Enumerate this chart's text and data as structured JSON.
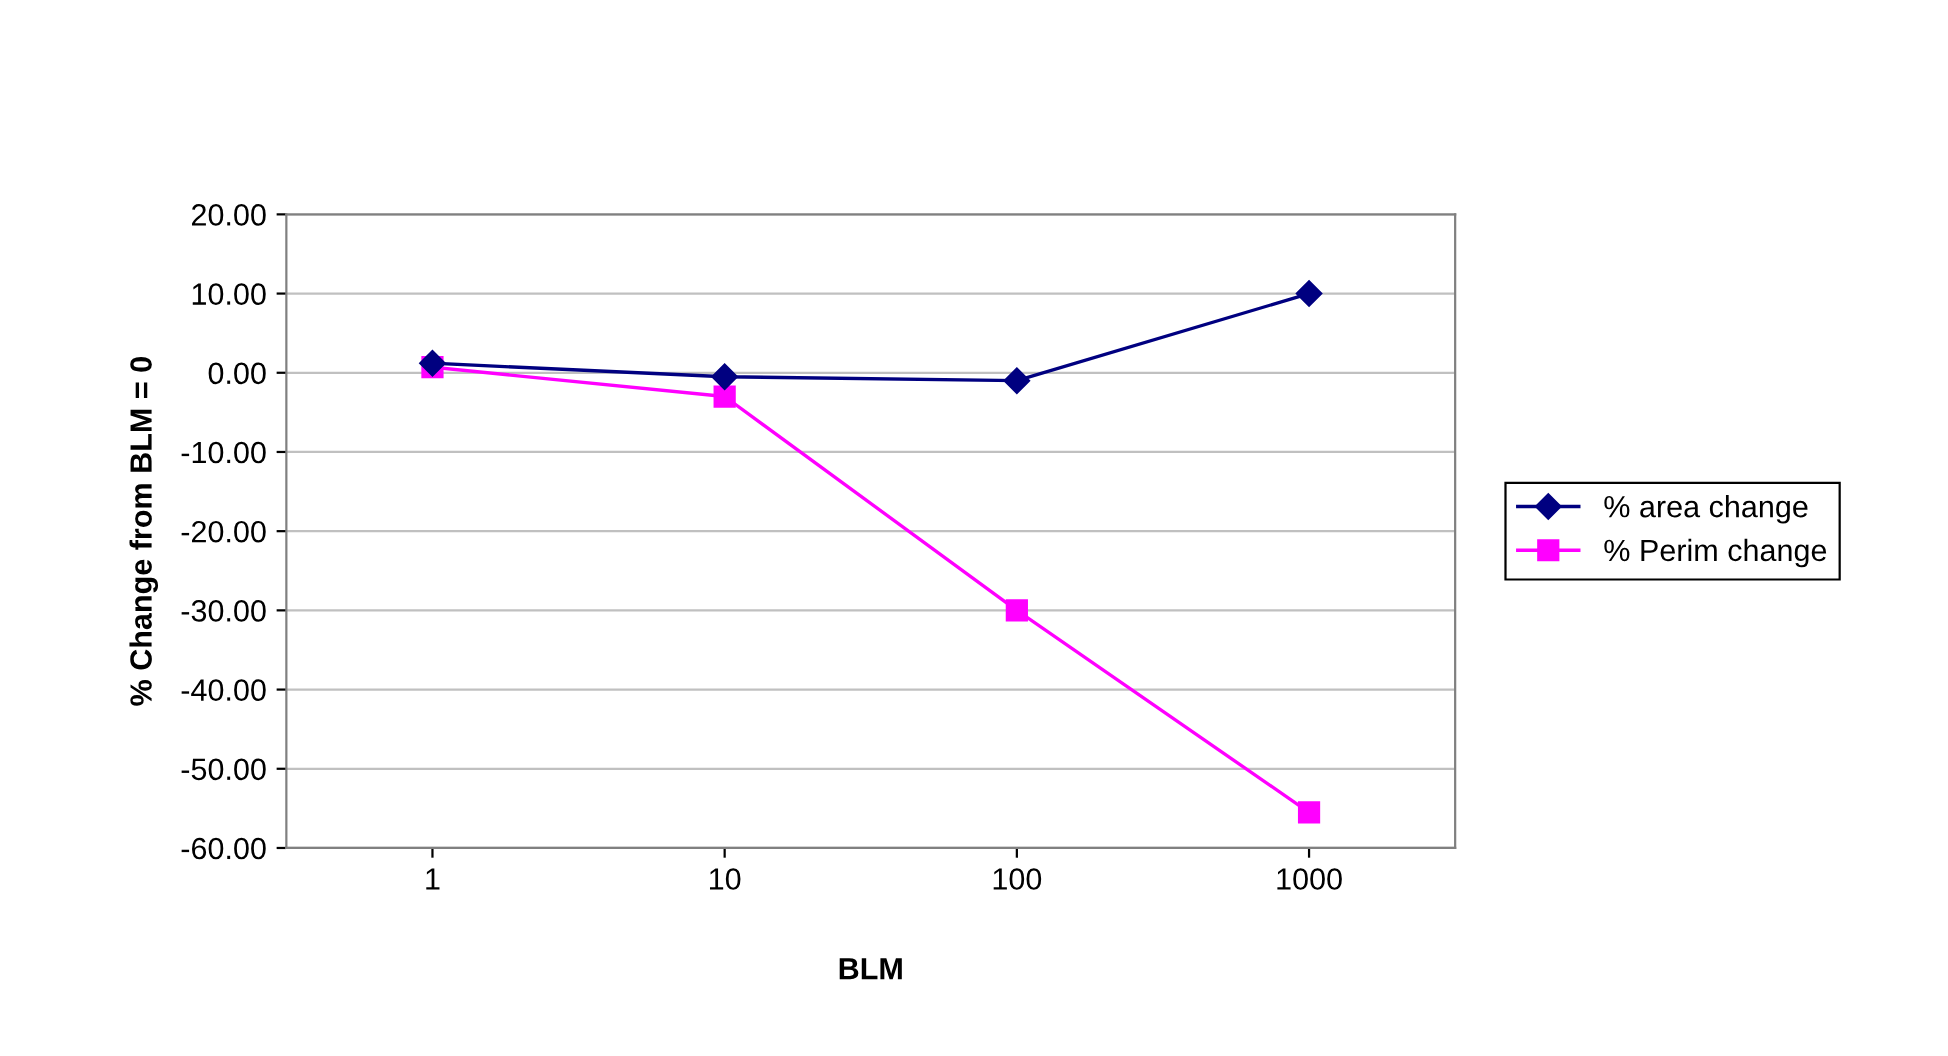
{
  "chart_data": {
    "type": "line",
    "xlabel": "BLM",
    "ylabel": "% Change from BLM = 0",
    "categories": [
      "1",
      "10",
      "100",
      "1000"
    ],
    "series": [
      {
        "name": "% area change",
        "color": "#000080",
        "marker": "diamond",
        "values": [
          1.2,
          -0.5,
          -1.0,
          10.0
        ]
      },
      {
        "name": "% Perim change",
        "color": "#ff00ff",
        "marker": "square",
        "values": [
          0.7,
          -3.0,
          -30.0,
          -55.5
        ]
      }
    ],
    "ylim": [
      -60,
      20
    ],
    "yticks": [
      {
        "value": -60,
        "label": "-60.00"
      },
      {
        "value": -50,
        "label": "-50.00"
      },
      {
        "value": -40,
        "label": "-40.00"
      },
      {
        "value": -30,
        "label": "-30.00"
      },
      {
        "value": -20,
        "label": "-20.00"
      },
      {
        "value": -10,
        "label": "-10.00"
      },
      {
        "value": 0,
        "label": "0.00"
      },
      {
        "value": 10,
        "label": "10.00"
      },
      {
        "value": 20,
        "label": "20.00"
      }
    ],
    "grid": "y",
    "legend": "right",
    "line_style": "solid"
  }
}
